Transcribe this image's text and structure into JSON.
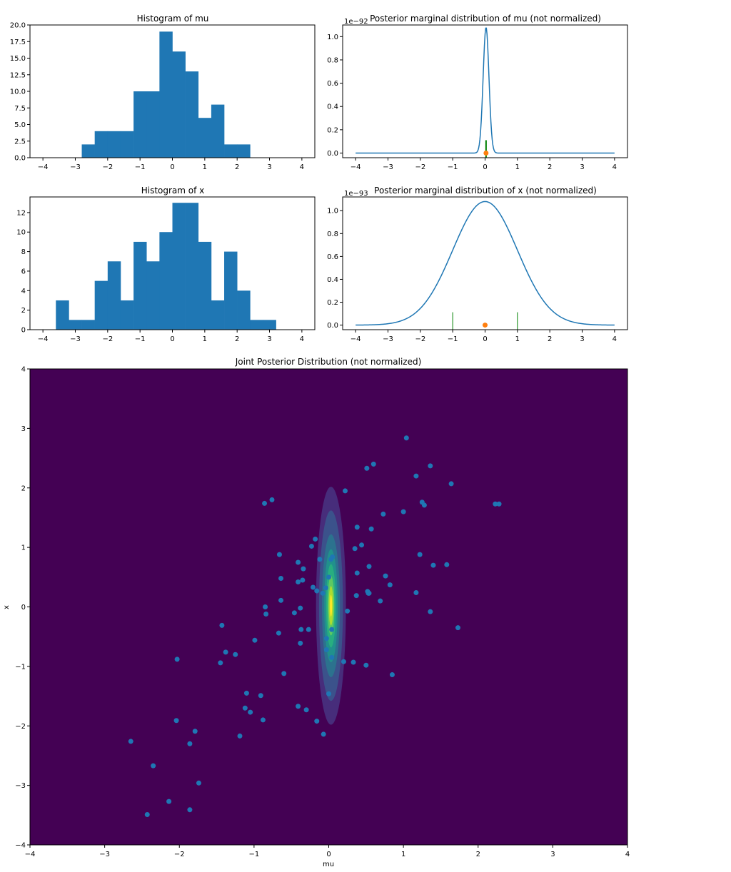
{
  "chart_data": [
    {
      "type": "bar",
      "title": "Histogram of mu",
      "xlim": [
        -4.4,
        4.4
      ],
      "ylim": [
        0,
        20
      ],
      "xticks": [
        "−4",
        "−3",
        "−2",
        "−1",
        "0",
        "1",
        "2",
        "3",
        "4"
      ],
      "yticks": [
        "0.0",
        "2.5",
        "5.0",
        "7.5",
        "10.0",
        "12.5",
        "15.0",
        "17.5",
        "20.0"
      ],
      "bin_edges": [
        -2.8,
        -2.4,
        -2.0,
        -1.6,
        -1.2,
        -0.8,
        -0.4,
        0.0,
        0.4,
        0.8,
        1.2,
        1.6,
        2.0,
        2.4
      ],
      "values": [
        2,
        4,
        4,
        4,
        10,
        10,
        19,
        16,
        13,
        6,
        8,
        2,
        2
      ],
      "color": "#1f77b4"
    },
    {
      "type": "line",
      "title": "Posterior marginal distribution of mu (not normalized)",
      "scale_label": "1e−92",
      "xlim": [
        -4.4,
        4.4
      ],
      "ylim": [
        -0.04,
        1.1
      ],
      "xticks": [
        "−4",
        "−3",
        "−2",
        "−1",
        "0",
        "1",
        "2",
        "3",
        "4"
      ],
      "yticks": [
        "0.0",
        "0.2",
        "0.4",
        "0.6",
        "0.8",
        "1.0"
      ],
      "curve": {
        "peak": 1.08,
        "center": 0.03,
        "sigma": 0.09
      },
      "x_range": [
        -4,
        4
      ],
      "markers": [
        0.03
      ],
      "point": {
        "x": 0.03,
        "y": 0
      },
      "line_color": "#1f77b4",
      "marker_color": "#008000",
      "point_color": "#ff7f0e"
    },
    {
      "type": "bar",
      "title": "Histogram of x",
      "xlim": [
        -4.4,
        4.4
      ],
      "ylim": [
        0,
        13.6
      ],
      "xticks": [
        "−4",
        "−3",
        "−2",
        "−1",
        "0",
        "1",
        "2",
        "3",
        "4"
      ],
      "yticks": [
        "0",
        "2",
        "4",
        "6",
        "8",
        "10",
        "12"
      ],
      "bin_edges": [
        -3.6,
        -3.2,
        -2.8,
        -2.4,
        -2.0,
        -1.6,
        -1.2,
        -0.8,
        -0.4,
        0.0,
        0.4,
        0.8,
        1.2,
        1.6,
        2.0,
        2.4,
        2.8,
        3.2
      ],
      "values": [
        3,
        1,
        1,
        5,
        7,
        3,
        9,
        7,
        10,
        13,
        13,
        9,
        3,
        8,
        4,
        1,
        1
      ],
      "color": "#1f77b4"
    },
    {
      "type": "line",
      "title": "Posterior marginal distribution of x (not normalized)",
      "scale_label": "1e−93",
      "xlim": [
        -4.4,
        4.4
      ],
      "ylim": [
        -0.04,
        1.12
      ],
      "xticks": [
        "−4",
        "−3",
        "−2",
        "−1",
        "0",
        "1",
        "2",
        "3",
        "4"
      ],
      "yticks": [
        "0.0",
        "0.2",
        "0.4",
        "0.6",
        "0.8",
        "1.0"
      ],
      "curve": {
        "peak": 1.08,
        "center": 0.0,
        "sigma": 1.0
      },
      "x_range": [
        -4,
        4
      ],
      "markers": [
        -1,
        1
      ],
      "point": {
        "x": 0,
        "y": 0
      },
      "line_color": "#1f77b4",
      "marker_color": "#008000",
      "point_color": "#ff7f0e"
    },
    {
      "type": "scatter",
      "title": "Joint Posterior Distribution (not normalized)",
      "xlabel": "mu",
      "ylabel": "x",
      "xlim": [
        -4,
        4
      ],
      "ylim": [
        -4,
        4
      ],
      "xticks": [
        "−4",
        "−3",
        "−2",
        "−1",
        "0",
        "1",
        "2",
        "3",
        "4"
      ],
      "yticks": [
        "−4",
        "−3",
        "−2",
        "−1",
        "0",
        "1",
        "2",
        "3",
        "4"
      ],
      "background": "#440154",
      "contours": [
        {
          "rx": 0.2,
          "ry": 2.0,
          "color": "#472d7b"
        },
        {
          "rx": 0.16,
          "ry": 1.6,
          "color": "#3b528b"
        },
        {
          "rx": 0.12,
          "ry": 1.2,
          "color": "#2c728e"
        },
        {
          "rx": 0.09,
          "ry": 0.95,
          "color": "#21918c"
        },
        {
          "rx": 0.065,
          "ry": 0.7,
          "color": "#28ae80"
        },
        {
          "rx": 0.045,
          "ry": 0.5,
          "color": "#5ec962"
        },
        {
          "rx": 0.03,
          "ry": 0.33,
          "color": "#addc30"
        },
        {
          "rx": 0.015,
          "ry": 0.18,
          "color": "#fde725"
        }
      ],
      "contour_center": [
        0.03,
        0.02
      ],
      "point_color": "#1f77b4",
      "points": [
        [
          1.04,
          2.84
        ],
        [
          0.6,
          2.4
        ],
        [
          0.51,
          2.33
        ],
        [
          1.36,
          2.37
        ],
        [
          1.17,
          2.2
        ],
        [
          1.64,
          2.07
        ],
        [
          0.22,
          1.95
        ],
        [
          -0.76,
          1.8
        ],
        [
          -0.86,
          1.74
        ],
        [
          1.25,
          1.76
        ],
        [
          1.28,
          1.71
        ],
        [
          2.23,
          1.73
        ],
        [
          2.28,
          1.73
        ],
        [
          0.73,
          1.56
        ],
        [
          1.0,
          1.6
        ],
        [
          0.38,
          1.34
        ],
        [
          0.57,
          1.31
        ],
        [
          -0.18,
          1.14
        ],
        [
          -0.23,
          1.02
        ],
        [
          0.44,
          1.04
        ],
        [
          0.35,
          0.98
        ],
        [
          -0.66,
          0.88
        ],
        [
          1.22,
          0.88
        ],
        [
          0.05,
          0.84
        ],
        [
          0.03,
          0.8
        ],
        [
          -0.12,
          0.8
        ],
        [
          -0.41,
          0.75
        ],
        [
          0.54,
          0.68
        ],
        [
          1.4,
          0.7
        ],
        [
          1.58,
          0.71
        ],
        [
          -0.34,
          0.64
        ],
        [
          0.38,
          0.57
        ],
        [
          0.76,
          0.52
        ],
        [
          -0.64,
          0.48
        ],
        [
          -0.0,
          0.5
        ],
        [
          -0.35,
          0.45
        ],
        [
          -0.41,
          0.42
        ],
        [
          0.82,
          0.37
        ],
        [
          -0.21,
          0.33
        ],
        [
          -0.04,
          0.32
        ],
        [
          -0.16,
          0.27
        ],
        [
          0.52,
          0.26
        ],
        [
          -0.08,
          0.23
        ],
        [
          0.53,
          0.23
        ],
        [
          0.54,
          0.23
        ],
        [
          1.17,
          0.24
        ],
        [
          0.37,
          0.19
        ],
        [
          0.69,
          0.1
        ],
        [
          -0.64,
          0.11
        ],
        [
          -0.85,
          0.0
        ],
        [
          -0.38,
          -0.02
        ],
        [
          -0.84,
          -0.12
        ],
        [
          -0.46,
          -0.1
        ],
        [
          0.25,
          -0.07
        ],
        [
          1.36,
          -0.08
        ],
        [
          1.73,
          -0.35
        ],
        [
          -1.43,
          -0.31
        ],
        [
          -0.27,
          -0.38
        ],
        [
          -0.37,
          -0.38
        ],
        [
          0.04,
          -0.38
        ],
        [
          -0.67,
          -0.44
        ],
        [
          -0.03,
          -0.53
        ],
        [
          -0.99,
          -0.56
        ],
        [
          -0.38,
          -0.61
        ],
        [
          -0.03,
          -0.72
        ],
        [
          -1.38,
          -0.76
        ],
        [
          -1.25,
          -0.8
        ],
        [
          0.04,
          -0.85
        ],
        [
          -2.03,
          -0.88
        ],
        [
          0.2,
          -0.92
        ],
        [
          0.33,
          -0.93
        ],
        [
          0.5,
          -0.98
        ],
        [
          -1.45,
          -0.94
        ],
        [
          -0.6,
          -1.12
        ],
        [
          0.85,
          -1.14
        ],
        [
          -1.1,
          -1.45
        ],
        [
          -0.91,
          -1.49
        ],
        [
          0.0,
          -1.46
        ],
        [
          -0.41,
          -1.67
        ],
        [
          -0.3,
          -1.73
        ],
        [
          -1.12,
          -1.7
        ],
        [
          -1.05,
          -1.77
        ],
        [
          -0.88,
          -1.9
        ],
        [
          -2.04,
          -1.91
        ],
        [
          -0.16,
          -1.92
        ],
        [
          -1.79,
          -2.09
        ],
        [
          -0.07,
          -2.14
        ],
        [
          -1.19,
          -2.17
        ],
        [
          -1.86,
          -2.3
        ],
        [
          -2.65,
          -2.26
        ],
        [
          -2.35,
          -2.67
        ],
        [
          -1.74,
          -2.96
        ],
        [
          -2.14,
          -3.27
        ],
        [
          -1.86,
          -3.41
        ],
        [
          -2.43,
          -3.49
        ]
      ]
    }
  ]
}
